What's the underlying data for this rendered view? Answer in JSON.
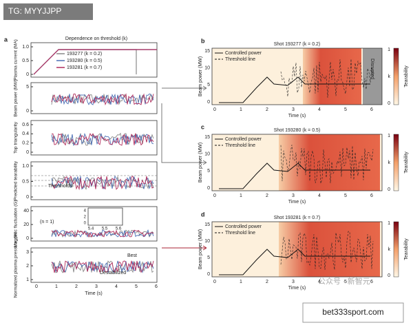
{
  "watermark": {
    "badge": "TG: MYYJJPP",
    "site": "bet333sport.com",
    "account": "公众号 · 新智元"
  },
  "panel_a": {
    "label": "a",
    "title": "Dependence on threshold (k)",
    "legend": [
      "193277 (k = 0.2)",
      "193280 (k = 0.5)",
      "193281 (k = 0.7)"
    ],
    "subplots": [
      {
        "ylabel": "Plasma current (MA)",
        "yticks": [
          "0",
          "0.5",
          "1.0"
        ]
      },
      {
        "ylabel": "Beam power (MW)",
        "yticks": [
          "0",
          "5"
        ]
      },
      {
        "ylabel": "Top triangularity",
        "yticks": [
          "0",
          "0.2",
          "0.4",
          "0.6"
        ]
      },
      {
        "ylabel": "Predicted tearability",
        "yticks": [
          "0",
          "0.5",
          "1.0"
        ]
      },
      {
        "ylabel": "Magnetic fluctuation (G)",
        "yticks": [
          "0",
          "20",
          "40"
        ]
      },
      {
        "ylabel": "Normalized plasma pressure, βN",
        "yticks": [
          "1",
          "2",
          "3"
        ]
      }
    ],
    "xticks": [
      "0",
      "1",
      "2",
      "3",
      "4",
      "5",
      "6"
    ],
    "xlabel": "Time (s)",
    "annotations": [
      "Thresholds",
      "(n = 1)",
      "Best",
      "Destabilized"
    ],
    "inset_xticks": [
      "5.4",
      "5.5",
      "5.6"
    ],
    "inset_yticks": [
      "0",
      "2",
      "4"
    ]
  },
  "panels": [
    {
      "label": "b",
      "title": "Shot 193277 (k = 0.2)",
      "legend": [
        "Controlled power",
        "Threshold line"
      ],
      "ylabel": "Beam power (MW)",
      "yticks": [
        "0",
        "5",
        "10",
        "15"
      ],
      "xticks": [
        "0",
        "1",
        "2",
        "3",
        "4",
        "5",
        "6"
      ],
      "xlabel": "Time (s)",
      "colorbar_label": "Tearability",
      "colorbar_ticks": [
        "0",
        "k",
        "1"
      ],
      "annotation": "Disrupted"
    },
    {
      "label": "c",
      "title": "Shot 193280 (k = 0.5)",
      "legend": [
        "Controlled power",
        "Threshold line"
      ],
      "ylabel": "Beam power (MW)",
      "yticks": [
        "0",
        "5",
        "10",
        "15"
      ],
      "xticks": [
        "0",
        "1",
        "2",
        "3",
        "4",
        "5",
        "6"
      ],
      "xlabel": "Time (s)",
      "colorbar_label": "Tearability",
      "colorbar_ticks": [
        "0",
        "k",
        "1"
      ]
    },
    {
      "label": "d",
      "title": "Shot 193281 (k = 0.7)",
      "legend": [
        "Controlled power",
        "Threshold line"
      ],
      "ylabel": "Beam power (MW)",
      "yticks": [
        "0",
        "5",
        "10",
        "15"
      ],
      "xticks": [
        "0",
        "1",
        "2",
        "3",
        "4",
        "5",
        "6"
      ],
      "xlabel": "Time (s)",
      "colorbar_label": "Tearability",
      "colorbar_ticks": [
        "0",
        "k",
        "1"
      ]
    }
  ]
}
